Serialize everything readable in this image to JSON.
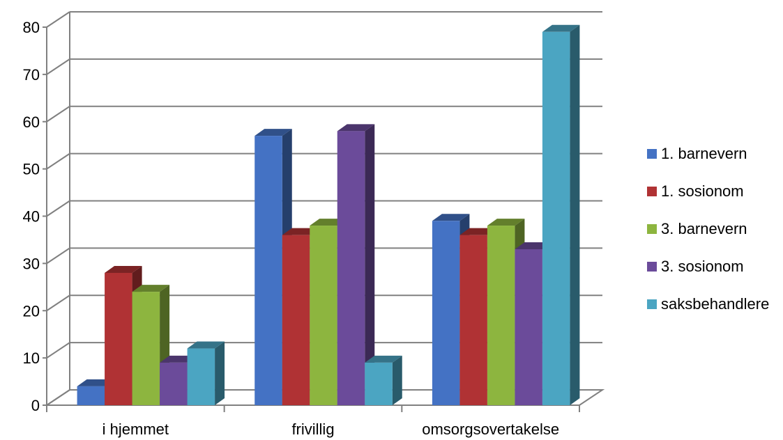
{
  "chart_data": {
    "type": "bar",
    "categories": [
      "i hjemmet",
      "frivillig",
      "omsorgsovertakelse"
    ],
    "series": [
      {
        "name": "1. barnevern",
        "values": [
          4,
          57,
          39
        ],
        "color": "#4472C4"
      },
      {
        "name": "1. sosionom",
        "values": [
          28,
          36,
          36
        ],
        "color": "#B03234"
      },
      {
        "name": "3. barnevern",
        "values": [
          24,
          38,
          38
        ],
        "color": "#8DB53F"
      },
      {
        "name": "3. sosionom",
        "values": [
          9,
          58,
          33
        ],
        "color": "#6B4B9A"
      },
      {
        "name": "saksbehandlere",
        "values": [
          12,
          9,
          79
        ],
        "color": "#4BA5C2"
      }
    ],
    "yticks": [
      "0",
      "10",
      "20",
      "30",
      "40",
      "50",
      "60",
      "70",
      "80"
    ],
    "ylim": [
      0,
      80
    ],
    "grid": true,
    "legend_position": "right",
    "title": "",
    "xlabel": "",
    "ylabel": ""
  }
}
